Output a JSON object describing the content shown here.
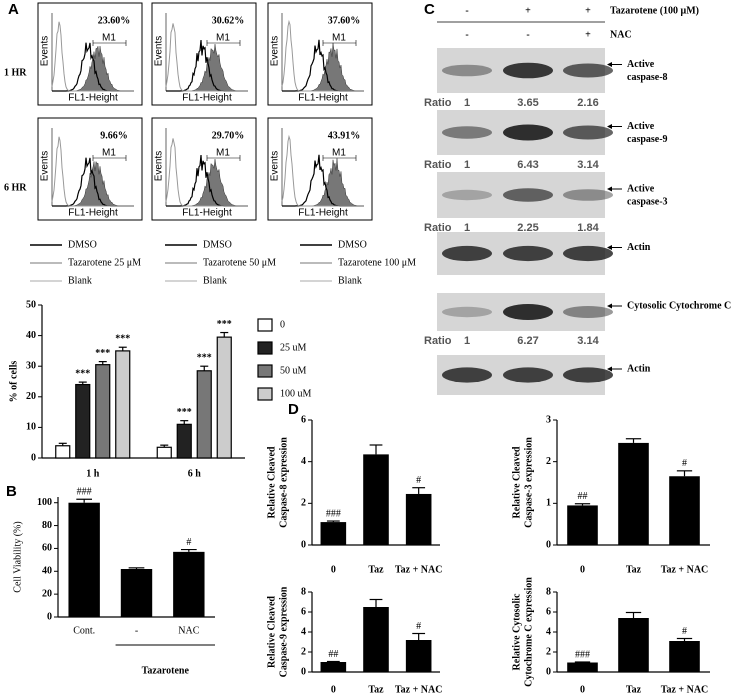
{
  "panel_labels": [
    "A",
    "B",
    "C",
    "D"
  ],
  "flow_cytometry": {
    "row_labels": [
      "1 HR",
      "6 HR"
    ],
    "percentages": [
      [
        "23.60%",
        "30.62%",
        "37.60%"
      ],
      [
        "9.66%",
        "29.70%",
        "43.91%"
      ]
    ],
    "x_label": "FL1-Height",
    "y_label": "Events",
    "gate_label": "M1",
    "legend": [
      [
        "DMSO",
        "Tazarotene 25 μM",
        "Blank"
      ],
      [
        "DMSO",
        "Tazarotene 50 μM",
        "Blank"
      ],
      [
        "DMSO",
        "Tazarotene 100 μM",
        "Blank"
      ]
    ]
  },
  "western_blot": {
    "treatments": [
      {
        "label": "Tazarotene (100 μM)",
        "signs": [
          "-",
          "+",
          "+"
        ]
      },
      {
        "label": "NAC",
        "signs": [
          "-",
          "-",
          "+"
        ]
      }
    ],
    "ratio_label": "Ratio",
    "blots": [
      {
        "label": [
          "Active",
          "caspase-8"
        ],
        "ratios": [
          "1",
          "3.65",
          "2.16"
        ]
      },
      {
        "label": [
          "Active",
          "caspase-9"
        ],
        "ratios": [
          "1",
          "6.43",
          "3.14"
        ]
      },
      {
        "label": [
          "Active",
          "caspase-3"
        ],
        "ratios": [
          "1",
          "2.25",
          "1.84"
        ]
      },
      {
        "label": [
          "Actin"
        ]
      },
      {
        "label": [
          "Cytosolic Cytochrome C"
        ],
        "ratios": [
          "1",
          "6.27",
          "3.14"
        ]
      },
      {
        "label": [
          "Actin"
        ]
      }
    ]
  },
  "chart_data": [
    {
      "type": "grouped_bar",
      "y_label": "% of cells",
      "categories": [
        "1 h",
        "6 h"
      ],
      "ylim": [
        0,
        50
      ],
      "yticks": [
        0,
        10,
        20,
        30,
        40,
        50
      ],
      "legend": "right",
      "series": [
        {
          "name": "0",
          "color": "#ffffff",
          "values": [
            4,
            3.5
          ],
          "errors": [
            0.8,
            0.7
          ]
        },
        {
          "name": "25 uM",
          "color": "#222222",
          "values": [
            24,
            11
          ],
          "errors": [
            0.8,
            1.2
          ],
          "annotations": [
            "***",
            "***"
          ]
        },
        {
          "name": "50 uM",
          "color": "#777777",
          "values": [
            30.5,
            28.5
          ],
          "errors": [
            1.0,
            1.5
          ],
          "annotations": [
            "***",
            "***"
          ]
        },
        {
          "name": "100 uM",
          "color": "#cccccc",
          "values": [
            35,
            39.5
          ],
          "errors": [
            1.2,
            1.5
          ],
          "annotations": [
            "***",
            "***"
          ]
        }
      ]
    },
    {
      "type": "bar",
      "y_label": "Cell Viability (%)",
      "categories": [
        "Cont.",
        "-",
        "NAC"
      ],
      "x_group_label": "Tazarotene",
      "ylim": [
        0,
        105
      ],
      "yticks": [
        0,
        20,
        40,
        60,
        80,
        100
      ],
      "color": "#000000",
      "values": [
        100,
        42,
        57
      ],
      "errors": [
        3,
        1,
        2
      ],
      "annotations": [
        "###",
        null,
        "#"
      ]
    },
    {
      "type": "bar",
      "y_label": [
        "Relative Cleaved",
        "Caspase-8 expression"
      ],
      "categories": [
        "0",
        "Taz",
        "Taz + NAC"
      ],
      "ylim": [
        0,
        6
      ],
      "yticks": [
        0,
        2,
        4,
        6
      ],
      "color": "#000000",
      "values": [
        1.1,
        4.35,
        2.45
      ],
      "errors": [
        0.05,
        0.45,
        0.3
      ],
      "annotations": [
        "###",
        null,
        "#"
      ]
    },
    {
      "type": "bar",
      "y_label": [
        "Relative Cleaved",
        "Caspase-3 expression"
      ],
      "categories": [
        "0",
        "Taz",
        "Taz + NAC"
      ],
      "ylim": [
        0,
        3
      ],
      "yticks": [
        0,
        1,
        2,
        3
      ],
      "color": "#000000",
      "values": [
        0.95,
        2.45,
        1.65
      ],
      "errors": [
        0.04,
        0.1,
        0.13
      ],
      "annotations": [
        "##",
        null,
        "#"
      ]
    },
    {
      "type": "bar",
      "y_label": [
        "Relative Cleaved",
        "Caspase-9 expression"
      ],
      "categories": [
        "0",
        "Taz",
        "Taz + NAC"
      ],
      "ylim": [
        0,
        8
      ],
      "yticks": [
        0,
        2,
        4,
        6,
        8
      ],
      "color": "#000000",
      "values": [
        1.0,
        6.5,
        3.2
      ],
      "errors": [
        0.05,
        0.75,
        0.65
      ],
      "annotations": [
        "##",
        null,
        "#"
      ]
    },
    {
      "type": "bar",
      "y_label": [
        "Relative Cytosolic",
        "Cytochrome C expression"
      ],
      "categories": [
        "0",
        "Taz",
        "Taz + NAC"
      ],
      "ylim": [
        0,
        8
      ],
      "yticks": [
        0,
        2,
        4,
        6,
        8
      ],
      "color": "#000000",
      "values": [
        0.95,
        5.4,
        3.1
      ],
      "errors": [
        0.05,
        0.55,
        0.25
      ],
      "annotations": [
        "###",
        null,
        "#"
      ]
    }
  ]
}
